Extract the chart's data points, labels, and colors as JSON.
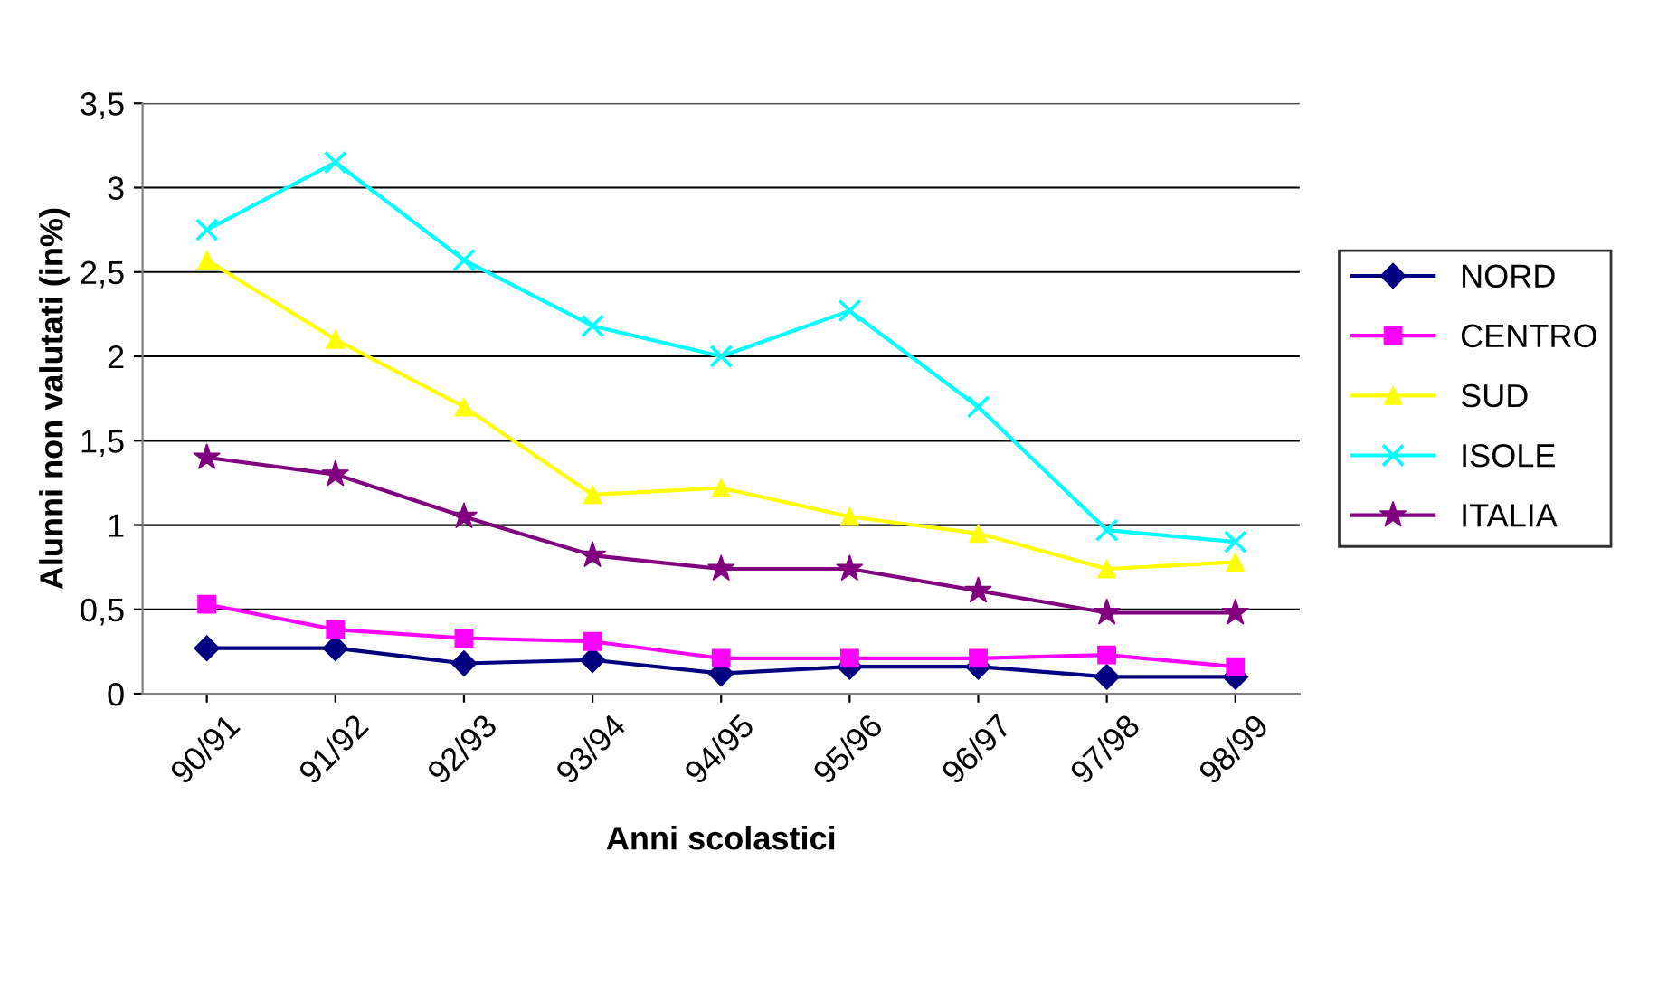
{
  "chart_data": {
    "type": "line",
    "xlabel": "Anni scolastici",
    "ylabel": "Alunni non valutati (in%)",
    "categories": [
      "90/91",
      "91/92",
      "92/93",
      "93/94",
      "94/95",
      "95/96",
      "96/97",
      "97/98",
      "98/99"
    ],
    "ylim": [
      0,
      3.5
    ],
    "yticks": [
      0,
      {
        "value": 0.5,
        "label": "0,5"
      },
      1,
      {
        "value": 1.5,
        "label": "1,5"
      },
      2,
      {
        "value": 2.5,
        "label": "2,5"
      },
      3,
      {
        "value": 3.5,
        "label": "3,5"
      }
    ],
    "grid": "y",
    "legend": "right",
    "series": [
      {
        "name": "NORD",
        "color": "#000080",
        "marker": "diamond",
        "values": [
          0.27,
          0.27,
          0.18,
          0.2,
          0.12,
          0.16,
          0.16,
          0.1,
          0.1
        ]
      },
      {
        "name": "CENTRO",
        "color": "#ff00ff",
        "marker": "square",
        "values": [
          0.53,
          0.38,
          0.33,
          0.31,
          0.21,
          0.21,
          0.21,
          0.23,
          0.16
        ]
      },
      {
        "name": "SUD",
        "color": "#ffff00",
        "marker": "triangle",
        "values": [
          2.57,
          2.1,
          1.7,
          1.18,
          1.22,
          1.05,
          0.95,
          0.74,
          0.78
        ]
      },
      {
        "name": "ISOLE",
        "color": "#00ffff",
        "marker": "cross",
        "values": [
          2.75,
          3.15,
          2.57,
          2.18,
          2.0,
          2.27,
          1.7,
          0.97,
          0.9
        ]
      },
      {
        "name": "ITALIA",
        "color": "#800080",
        "marker": "star",
        "values": [
          1.4,
          1.3,
          1.05,
          0.82,
          0.74,
          0.74,
          0.61,
          0.48,
          0.48
        ]
      }
    ]
  }
}
